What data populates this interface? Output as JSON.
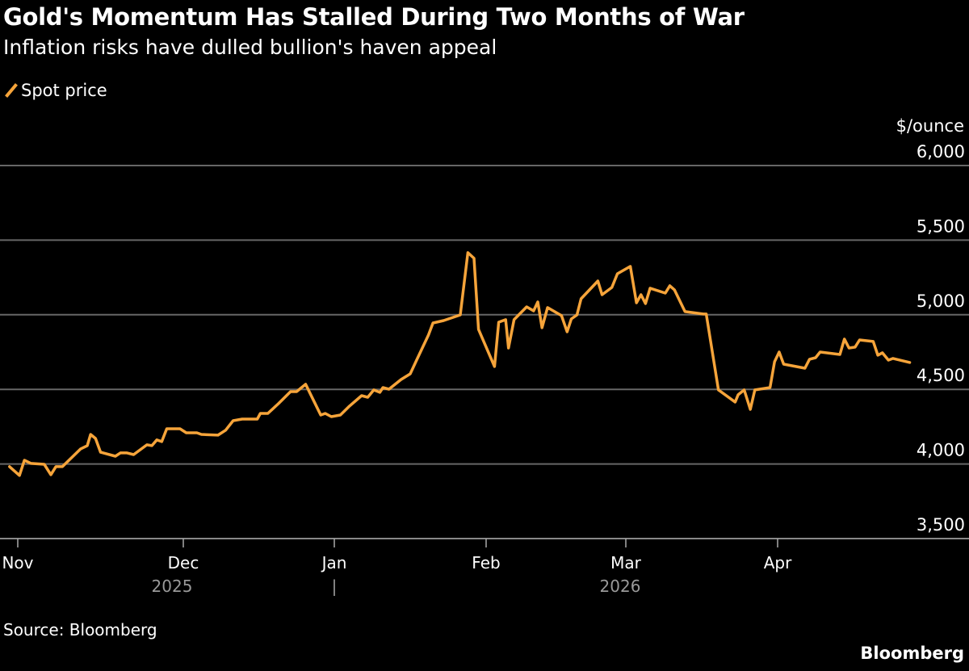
{
  "chart_data": {
    "type": "line",
    "title": "Gold's Momentum Has Stalled During Two Months of War",
    "subtitle": "Inflation risks have dulled bullion's haven appeal",
    "ylabel": "$/ounce",
    "ylim": [
      3500,
      6000
    ],
    "yticks": [
      6000,
      5500,
      5000,
      4500,
      4000,
      3500
    ],
    "ytick_labels": [
      "6,000",
      "5,500",
      "5,000",
      "4,500",
      "4,000",
      "3,500"
    ],
    "xticks": [
      "Nov",
      "Dec",
      "Jan",
      "Feb",
      "Mar",
      "Apr"
    ],
    "year_labels": [
      "2025",
      "|",
      "2026"
    ],
    "x_unit_note": "x = months since start of Nov 2025",
    "grid": true,
    "legend_position": "top-left",
    "source": "Source: Bloomberg",
    "brand": "Bloomberg",
    "series": [
      {
        "name": "Spot price",
        "color": "#f6a43a",
        "points": [
          [
            -0.05,
            3982
          ],
          [
            0.01,
            3923
          ],
          [
            0.04,
            4025
          ],
          [
            0.08,
            4004
          ],
          [
            0.16,
            3998
          ],
          [
            0.2,
            3928
          ],
          [
            0.23,
            3982
          ],
          [
            0.27,
            3982
          ],
          [
            0.38,
            4101
          ],
          [
            0.42,
            4123
          ],
          [
            0.44,
            4198
          ],
          [
            0.47,
            4171
          ],
          [
            0.5,
            4079
          ],
          [
            0.59,
            4052
          ],
          [
            0.62,
            4074
          ],
          [
            0.66,
            4074
          ],
          [
            0.7,
            4063
          ],
          [
            0.78,
            4128
          ],
          [
            0.81,
            4123
          ],
          [
            0.84,
            4161
          ],
          [
            0.87,
            4150
          ],
          [
            0.9,
            4236
          ],
          [
            0.98,
            4236
          ],
          [
            1.02,
            4209
          ],
          [
            1.09,
            4209
          ],
          [
            1.12,
            4198
          ],
          [
            1.23,
            4193
          ],
          [
            1.28,
            4226
          ],
          [
            1.33,
            4290
          ],
          [
            1.39,
            4301
          ],
          [
            1.49,
            4301
          ],
          [
            1.51,
            4339
          ],
          [
            1.56,
            4339
          ],
          [
            1.63,
            4404
          ],
          [
            1.71,
            4485
          ],
          [
            1.75,
            4485
          ],
          [
            1.81,
            4534
          ],
          [
            1.91,
            4328
          ],
          [
            1.94,
            4339
          ],
          [
            1.98,
            4317
          ],
          [
            2.04,
            4328
          ],
          [
            2.1,
            4388
          ],
          [
            2.18,
            4458
          ],
          [
            2.22,
            4447
          ],
          [
            2.26,
            4496
          ],
          [
            2.3,
            4480
          ],
          [
            2.32,
            4512
          ],
          [
            2.36,
            4501
          ],
          [
            2.44,
            4566
          ],
          [
            2.5,
            4604
          ],
          [
            2.54,
            4691
          ],
          [
            2.62,
            4864
          ],
          [
            2.65,
            4945
          ],
          [
            2.72,
            4961
          ],
          [
            2.83,
            4999
          ],
          [
            2.88,
            5416
          ],
          [
            2.92,
            5378
          ],
          [
            2.95,
            4902
          ],
          [
            3.06,
            4653
          ],
          [
            3.09,
            4950
          ],
          [
            3.14,
            4967
          ],
          [
            3.16,
            4777
          ],
          [
            3.2,
            4967
          ],
          [
            3.29,
            5053
          ],
          [
            3.34,
            5026
          ],
          [
            3.37,
            5086
          ],
          [
            3.4,
            4913
          ],
          [
            3.44,
            5048
          ],
          [
            3.54,
            4994
          ],
          [
            3.58,
            4886
          ],
          [
            3.61,
            4972
          ],
          [
            3.65,
            4999
          ],
          [
            3.68,
            5107
          ],
          [
            3.8,
            5226
          ],
          [
            3.83,
            5134
          ],
          [
            3.9,
            5183
          ],
          [
            3.94,
            5275
          ],
          [
            4.03,
            5324
          ],
          [
            4.07,
            5080
          ],
          [
            4.1,
            5134
          ],
          [
            4.13,
            5075
          ],
          [
            4.16,
            5178
          ],
          [
            4.26,
            5145
          ],
          [
            4.29,
            5194
          ],
          [
            4.32,
            5167
          ],
          [
            4.39,
            5021
          ],
          [
            4.51,
            5005
          ],
          [
            4.53,
            5005
          ],
          [
            4.61,
            4496
          ],
          [
            4.72,
            4415
          ],
          [
            4.74,
            4464
          ],
          [
            4.78,
            4496
          ],
          [
            4.82,
            4366
          ],
          [
            4.85,
            4496
          ],
          [
            4.95,
            4512
          ],
          [
            4.98,
            4685
          ],
          [
            5.01,
            4750
          ],
          [
            5.04,
            4669
          ],
          [
            5.12,
            4653
          ],
          [
            5.18,
            4642
          ],
          [
            5.21,
            4702
          ],
          [
            5.25,
            4712
          ],
          [
            5.28,
            4750
          ],
          [
            5.41,
            4734
          ],
          [
            5.44,
            4837
          ],
          [
            5.47,
            4777
          ],
          [
            5.51,
            4783
          ],
          [
            5.54,
            4831
          ],
          [
            5.63,
            4821
          ],
          [
            5.66,
            4729
          ],
          [
            5.69,
            4745
          ],
          [
            5.73,
            4696
          ],
          [
            5.76,
            4707
          ],
          [
            5.87,
            4680
          ]
        ]
      }
    ]
  }
}
